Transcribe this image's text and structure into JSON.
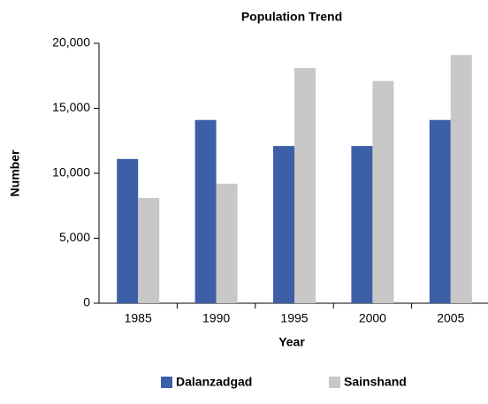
{
  "chart_data": {
    "type": "bar",
    "title": "Population Trend",
    "x_label": "Year",
    "y_label": "Number",
    "categories": [
      "1985",
      "1990",
      "1995",
      "2000",
      "2005"
    ],
    "series": [
      {
        "name": "Dalanzadgad",
        "color": "#3c5fa8",
        "values": [
          11100,
          14100,
          12100,
          12100,
          14100
        ]
      },
      {
        "name": "Sainshand",
        "color": "#c8c8c8",
        "values": [
          8100,
          9200,
          18100,
          17100,
          19100
        ]
      }
    ],
    "ylim": [
      0,
      20000
    ],
    "yticks": [
      0,
      {
        "value": 5000,
        "label": "5,000"
      },
      {
        "value": 10000,
        "label": "10,000"
      },
      {
        "value": 15000,
        "label": "15,000"
      },
      {
        "value": 20000,
        "label": "20,000"
      }
    ],
    "grid": false,
    "legend": "bottom"
  }
}
